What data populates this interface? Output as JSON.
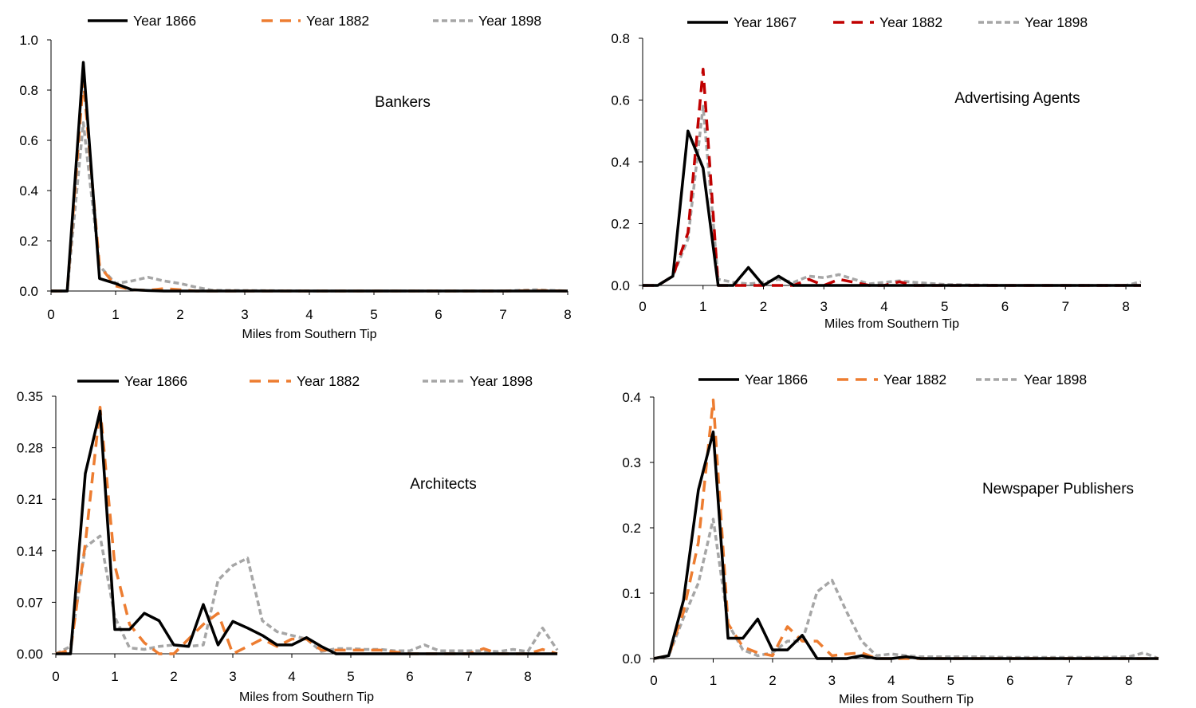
{
  "chart_data": [
    {
      "type": "line",
      "title": "Bankers",
      "xlabel": "Miles from Southern Tip",
      "ylabel": "",
      "xlim": [
        0,
        8
      ],
      "ylim": [
        0,
        1.0
      ],
      "xticks": [
        "0",
        "1",
        "2",
        "3",
        "4",
        "5",
        "6",
        "7",
        "8"
      ],
      "yticks": [
        "0.0",
        "0.2",
        "0.4",
        "0.6",
        "0.8",
        "1.0"
      ],
      "grid": false,
      "legend_position": "top",
      "series": [
        {
          "name": "Year 1866",
          "color": "#000000",
          "style": "solid",
          "x": [
            0,
            0.25,
            0.5,
            0.75,
            1.0,
            1.25,
            1.5,
            1.75,
            2.0,
            2.25,
            2.5,
            3,
            3.5,
            4,
            5,
            6,
            7,
            7.5,
            8
          ],
          "y": [
            0,
            0,
            0.91,
            0.05,
            0.03,
            0.005,
            0.002,
            0,
            0,
            0,
            0,
            0,
            0,
            0,
            0,
            0,
            0,
            0,
            0
          ]
        },
        {
          "name": "Year 1882",
          "color": "#ED7D31",
          "style": "dash",
          "x": [
            0,
            0.25,
            0.5,
            0.75,
            1.0,
            1.25,
            1.5,
            1.75,
            2.0,
            2.25,
            2.5,
            3,
            3.5,
            4,
            5,
            6,
            7,
            7.5,
            8
          ],
          "y": [
            0,
            0,
            0.84,
            0.1,
            0.02,
            0.005,
            0.003,
            0.01,
            0.005,
            0,
            0,
            0,
            0,
            0,
            0,
            0,
            0,
            0.002,
            0
          ]
        },
        {
          "name": "Year 1898",
          "color": "#A6A6A6",
          "style": "dot",
          "x": [
            0,
            0.25,
            0.5,
            0.75,
            1.0,
            1.25,
            1.5,
            1.75,
            2.0,
            2.25,
            2.5,
            3,
            3.5,
            4,
            5,
            6,
            7,
            7.5,
            8
          ],
          "y": [
            0,
            0,
            0.67,
            0.1,
            0.03,
            0.04,
            0.055,
            0.04,
            0.03,
            0.015,
            0.003,
            0.002,
            0.001,
            0,
            0,
            0,
            0,
            0.005,
            0
          ]
        }
      ]
    },
    {
      "type": "line",
      "title": "Advertising Agents",
      "xlabel": "Miles from Southern Tip",
      "ylabel": "",
      "xlim": [
        0,
        8.25
      ],
      "ylim": [
        0,
        0.8
      ],
      "xticks": [
        "0",
        "1",
        "2",
        "3",
        "4",
        "5",
        "6",
        "7",
        "8"
      ],
      "yticks": [
        "0.0",
        "0.2",
        "0.4",
        "0.6",
        "0.8"
      ],
      "grid": false,
      "legend_position": "top",
      "series": [
        {
          "name": "Year 1867",
          "color": "#000000",
          "style": "solid",
          "x": [
            0,
            0.25,
            0.5,
            0.75,
            1.0,
            1.25,
            1.5,
            1.75,
            2.0,
            2.25,
            2.5,
            2.75,
            3.0,
            3.25,
            3.5,
            4,
            5,
            6,
            7,
            8,
            8.25
          ],
          "y": [
            0,
            0,
            0.03,
            0.5,
            0.38,
            0,
            0,
            0.058,
            0,
            0.03,
            0,
            0,
            0,
            0,
            0,
            0,
            0,
            0,
            0,
            0,
            0
          ]
        },
        {
          "name": "Year 1882",
          "color": "#C00000",
          "style": "dash",
          "x": [
            0,
            0.25,
            0.5,
            0.75,
            1.0,
            1.25,
            1.5,
            1.75,
            2.0,
            2.25,
            2.5,
            2.75,
            3.0,
            3.25,
            3.5,
            3.75,
            4.0,
            4.25,
            4.5,
            5,
            6,
            7,
            8,
            8.25
          ],
          "y": [
            0,
            0,
            0.03,
            0.17,
            0.7,
            0,
            0,
            0,
            0,
            0,
            0,
            0.02,
            0,
            0.02,
            0.01,
            0,
            0,
            0.012,
            0,
            0,
            0,
            0,
            0,
            0
          ]
        },
        {
          "name": "Year 1898",
          "color": "#A6A6A6",
          "style": "dot",
          "x": [
            0,
            0.25,
            0.5,
            0.75,
            1.0,
            1.25,
            1.5,
            1.75,
            2.0,
            2.25,
            2.5,
            2.75,
            3.0,
            3.25,
            3.5,
            3.75,
            4.0,
            4.25,
            4.5,
            5,
            6,
            7,
            8,
            8.25
          ],
          "y": [
            0,
            0,
            0.03,
            0.15,
            0.58,
            0.02,
            0.01,
            0.005,
            0.01,
            0.02,
            0.01,
            0.03,
            0.025,
            0.035,
            0.02,
            0.005,
            0.01,
            0.015,
            0.01,
            0.003,
            0,
            0,
            0,
            0.012
          ]
        }
      ]
    },
    {
      "type": "line",
      "title": "Architects",
      "xlabel": "Miles from Southern Tip",
      "ylabel": "",
      "xlim": [
        0,
        8.5
      ],
      "ylim": [
        0,
        0.35
      ],
      "xticks": [
        "0",
        "1",
        "2",
        "3",
        "4",
        "5",
        "6",
        "7",
        "8"
      ],
      "yticks": [
        "0.00",
        "0.07",
        "0.14",
        "0.21",
        "0.28",
        "0.35"
      ],
      "grid": false,
      "legend_position": "top",
      "series": [
        {
          "name": "Year 1866",
          "color": "#000000",
          "style": "solid",
          "x": [
            0,
            0.25,
            0.5,
            0.75,
            1.0,
            1.25,
            1.5,
            1.75,
            2.0,
            2.25,
            2.5,
            2.75,
            3.0,
            3.25,
            3.5,
            3.75,
            4.0,
            4.25,
            4.5,
            4.75,
            5.0,
            5.5,
            6,
            6.5,
            7,
            7.5,
            8,
            8.5
          ],
          "y": [
            0,
            0,
            0.245,
            0.33,
            0.033,
            0.033,
            0.055,
            0.045,
            0.012,
            0.01,
            0.067,
            0.012,
            0.044,
            0.035,
            0.025,
            0.012,
            0.012,
            0.022,
            0.01,
            0,
            0,
            0,
            0,
            0,
            0,
            0,
            0,
            0
          ]
        },
        {
          "name": "Year 1882",
          "color": "#ED7D31",
          "style": "dash",
          "x": [
            0,
            0.25,
            0.5,
            0.75,
            1.0,
            1.25,
            1.5,
            1.75,
            2.0,
            2.25,
            2.5,
            2.75,
            3.0,
            3.25,
            3.5,
            3.75,
            4.0,
            4.25,
            4.5,
            4.75,
            5.0,
            5.5,
            6,
            6.5,
            7,
            7.25,
            7.5,
            8,
            8.25,
            8.5
          ],
          "y": [
            0,
            0.005,
            0.15,
            0.335,
            0.12,
            0.04,
            0.015,
            0,
            0,
            0.02,
            0.04,
            0.055,
            0,
            0.01,
            0.02,
            0.01,
            0.02,
            0.02,
            0.005,
            0.005,
            0.005,
            0.005,
            0,
            0,
            0,
            0.007,
            0,
            0,
            0.006,
            0
          ]
        },
        {
          "name": "Year 1898",
          "color": "#A6A6A6",
          "style": "dot",
          "x": [
            0,
            0.25,
            0.5,
            0.75,
            1.0,
            1.25,
            1.5,
            1.75,
            2.0,
            2.25,
            2.5,
            2.75,
            3.0,
            3.25,
            3.5,
            3.75,
            4.0,
            4.25,
            4.5,
            4.75,
            5.0,
            5.25,
            5.5,
            5.75,
            6.0,
            6.25,
            6.5,
            6.75,
            7.0,
            7.25,
            7.5,
            7.75,
            8.0,
            8.25,
            8.5
          ],
          "y": [
            0,
            0.01,
            0.145,
            0.16,
            0.05,
            0.008,
            0.006,
            0.01,
            0.012,
            0.01,
            0.012,
            0.1,
            0.12,
            0.13,
            0.045,
            0.03,
            0.025,
            0.02,
            0.003,
            0.007,
            0.007,
            0.006,
            0.006,
            0.004,
            0.004,
            0.012,
            0.004,
            0.004,
            0.004,
            0.004,
            0.003,
            0.006,
            0.003,
            0.035,
            0.005
          ]
        }
      ]
    },
    {
      "type": "line",
      "title": "Newspaper Publishers",
      "xlabel": "Miles from Southern Tip",
      "ylabel": "",
      "xlim": [
        0,
        8.5
      ],
      "ylim": [
        0,
        0.45
      ],
      "xticks": [
        "0",
        "1",
        "2",
        "3",
        "4",
        "5",
        "6",
        "7",
        "8"
      ],
      "yticks": [
        "0.0",
        "0.1",
        "0.2",
        "0.3",
        "0.4"
      ],
      "grid": false,
      "legend_position": "top",
      "series": [
        {
          "name": "Year 1866",
          "color": "#000000",
          "style": "solid",
          "x": [
            0,
            0.25,
            0.5,
            0.75,
            1.0,
            1.25,
            1.5,
            1.75,
            2.0,
            2.25,
            2.5,
            2.75,
            3.0,
            3.25,
            3.5,
            3.75,
            4.0,
            4.25,
            4.5,
            5,
            6,
            7,
            8,
            8.5
          ],
          "y": [
            0,
            0.005,
            0.1,
            0.29,
            0.39,
            0.035,
            0.035,
            0.068,
            0.015,
            0.015,
            0.04,
            0,
            0,
            0,
            0.005,
            0,
            0,
            0.003,
            0,
            0,
            0,
            0,
            0,
            0
          ]
        },
        {
          "name": "Year 1882",
          "color": "#ED7D31",
          "style": "dash",
          "x": [
            0,
            0.25,
            0.5,
            0.75,
            1.0,
            1.25,
            1.5,
            1.75,
            2.0,
            2.25,
            2.5,
            2.75,
            3.0,
            3.25,
            3.5,
            3.75,
            4.0,
            4.25,
            4.5,
            5,
            6,
            7,
            8,
            8.5
          ],
          "y": [
            0,
            0.005,
            0.08,
            0.2,
            0.445,
            0.06,
            0.02,
            0.01,
            0.005,
            0.055,
            0.03,
            0.03,
            0.005,
            0.008,
            0.01,
            0,
            0,
            0,
            0,
            0,
            0,
            0,
            0,
            0
          ]
        },
        {
          "name": "Year 1898",
          "color": "#A6A6A6",
          "style": "dot",
          "x": [
            0,
            0.25,
            0.5,
            0.75,
            1.0,
            1.25,
            1.5,
            1.75,
            2.0,
            2.25,
            2.5,
            2.75,
            3.0,
            3.25,
            3.5,
            3.75,
            4.0,
            4.25,
            4.5,
            4.75,
            5.0,
            5.5,
            6.0,
            6.5,
            7.0,
            7.5,
            8.0,
            8.25,
            8.5
          ],
          "y": [
            0,
            0.005,
            0.07,
            0.13,
            0.24,
            0.06,
            0.015,
            0.005,
            0.01,
            0.03,
            0.03,
            0.115,
            0.135,
            0.08,
            0.03,
            0.005,
            0.008,
            0.005,
            0.003,
            0.003,
            0.003,
            0.003,
            0.002,
            0.002,
            0.002,
            0.002,
            0.003,
            0.01,
            0
          ]
        }
      ]
    }
  ]
}
